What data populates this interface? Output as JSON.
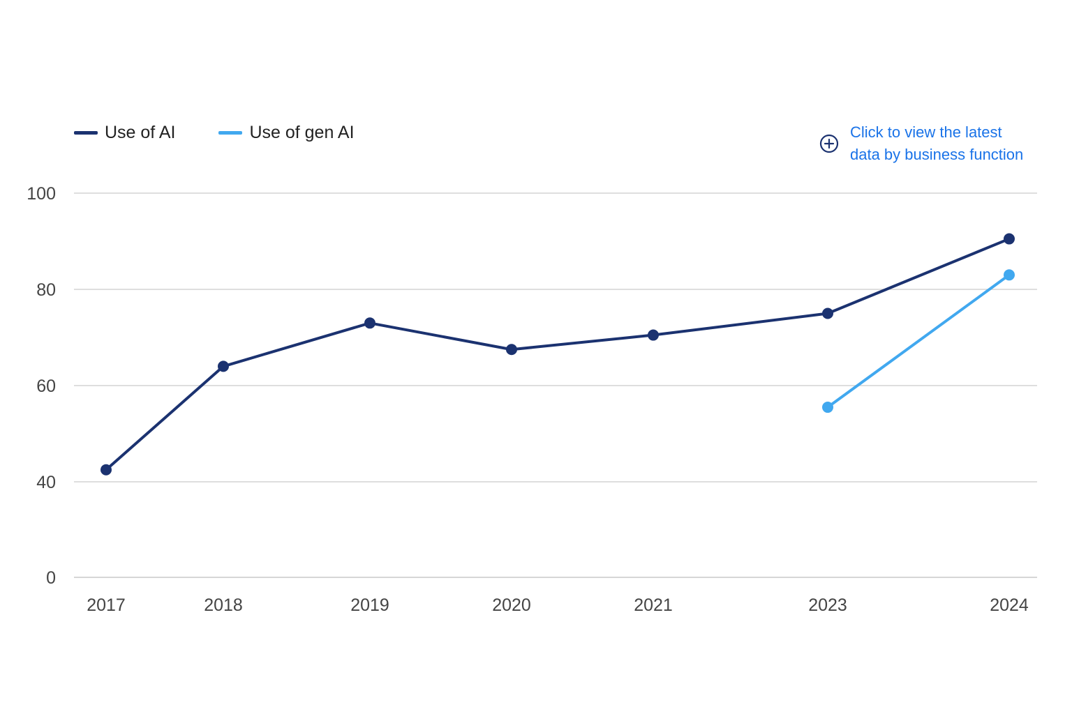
{
  "legend": {
    "items": [
      {
        "label": "Use of AI",
        "color": "#1b3270"
      },
      {
        "label": "Use of gen AI",
        "color": "#41a8ef"
      }
    ]
  },
  "cta": {
    "line1": "Click to view the latest",
    "line2": "data by business function",
    "icon": "plus-circle-icon",
    "color": "#1a73e8"
  },
  "colors": {
    "grid": "#c9c9c9",
    "axis_text": "#444444"
  },
  "chart_data": {
    "type": "line",
    "categories": [
      "2017",
      "2018",
      "2019",
      "2020",
      "2021",
      "2023",
      "2024"
    ],
    "yticks": [
      0,
      40,
      60,
      80,
      100
    ],
    "series": [
      {
        "name": "Use of AI",
        "color": "#1b3270",
        "values": [
          42.5,
          64,
          73,
          67.5,
          70.5,
          75,
          90.5
        ]
      },
      {
        "name": "Use of gen AI",
        "color": "#41a8ef",
        "values": [
          null,
          null,
          null,
          null,
          null,
          55.5,
          83
        ]
      }
    ],
    "grid": true,
    "legend_position": "top-left"
  }
}
